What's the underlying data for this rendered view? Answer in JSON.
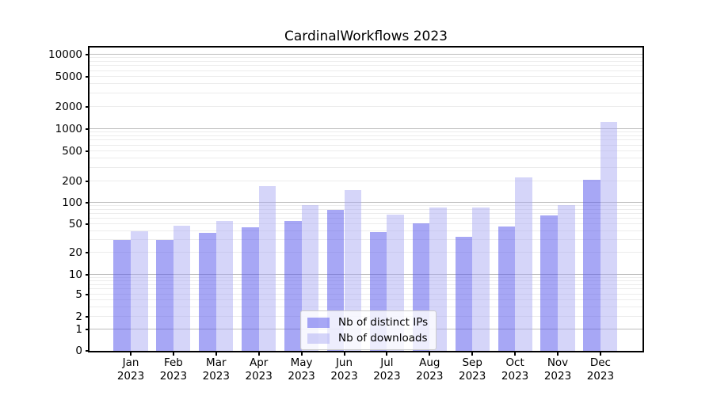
{
  "title": "CardinalWorkflows 2023",
  "chart_data": {
    "type": "bar",
    "title": "CardinalWorkflows 2023",
    "categories": [
      "Jan",
      "Feb",
      "Mar",
      "Apr",
      "May",
      "Jun",
      "Jul",
      "Aug",
      "Sep",
      "Oct",
      "Nov",
      "Dec"
    ],
    "year": "2023",
    "series": [
      {
        "name": "Nb of distinct IPs",
        "color": "rgba(88,88,236,0.53)",
        "values": [
          30,
          30,
          38,
          45,
          55,
          80,
          39,
          51,
          33,
          46,
          67,
          210
        ]
      },
      {
        "name": "Nb of downloads",
        "color": "rgba(168,168,242,0.48)",
        "values": [
          40,
          47,
          56,
          170,
          93,
          152,
          68,
          86,
          86,
          225,
          93,
          1250
        ]
      }
    ],
    "yscale": "symlog",
    "yticks": [
      0,
      1,
      2,
      5,
      10,
      20,
      50,
      100,
      200,
      500,
      1000,
      2000,
      5000,
      10000
    ],
    "ylim": [
      0,
      10000
    ],
    "grid": "both",
    "legend_position": "lower center",
    "xlabel": "",
    "ylabel": ""
  },
  "colors": {
    "major_grid": "#bcbcbc",
    "minor_grid": "#ececec",
    "spine": "#000000",
    "background": "#ffffff"
  }
}
